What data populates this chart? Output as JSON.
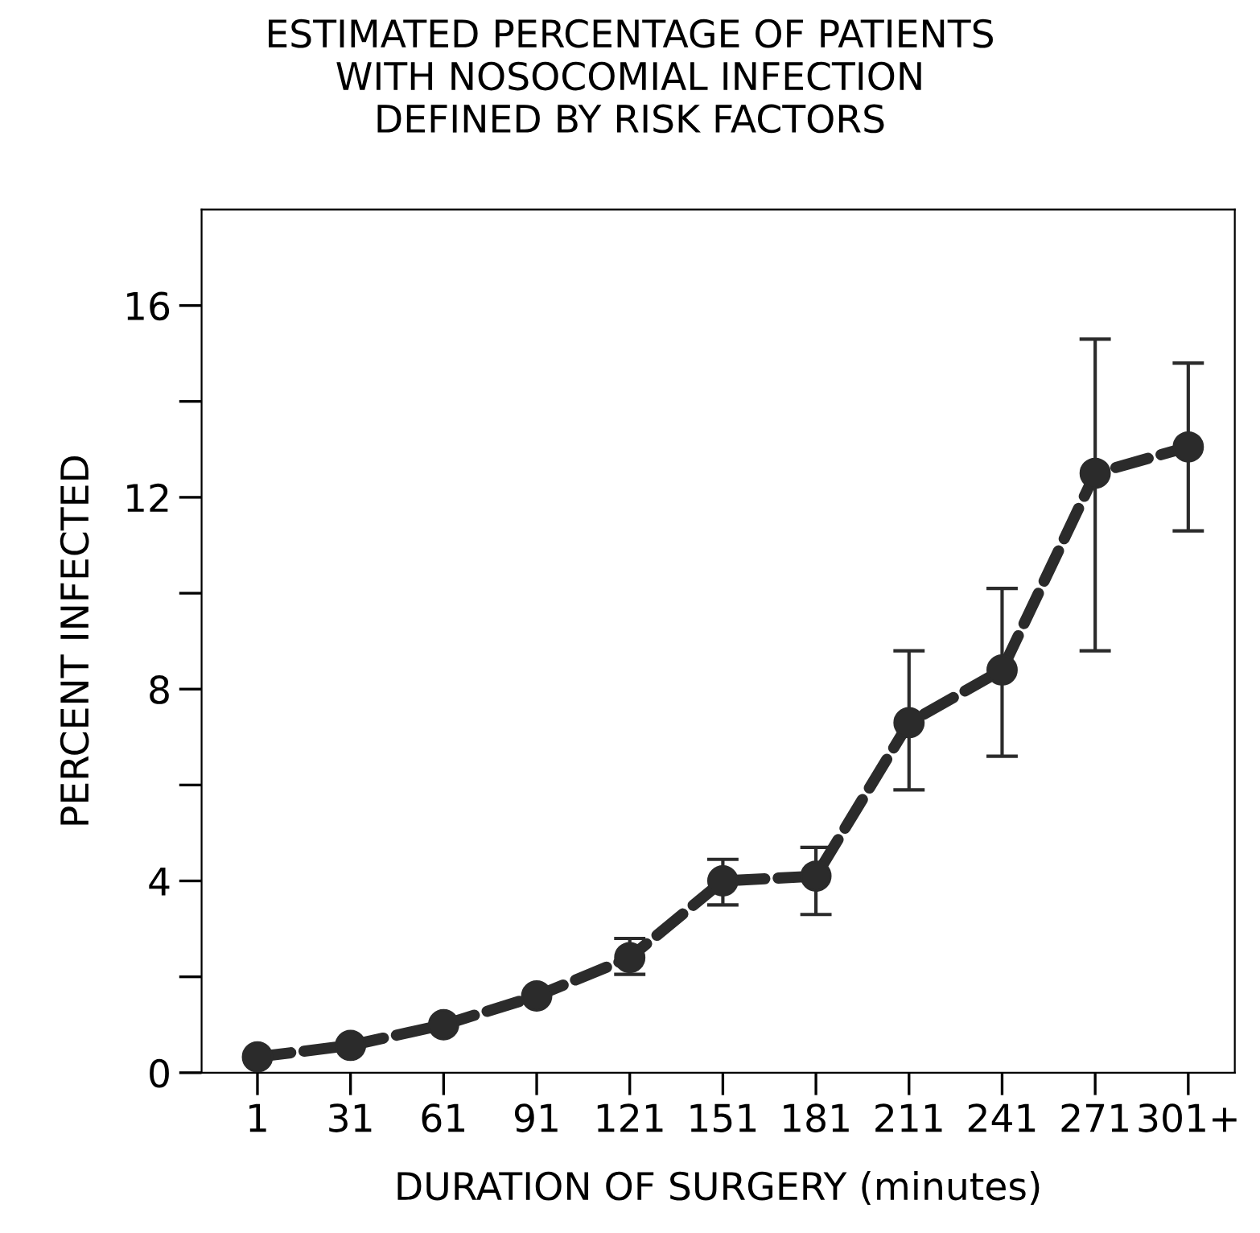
{
  "chart_data": {
    "type": "line",
    "title": "ESTIMATED PERCENTAGE OF PATIENTS\nWITH NOSOCOMIAL INFECTION\nDEFINED BY RISK FACTORS",
    "xlabel": "DURATION OF SURGERY (minutes)",
    "ylabel": "PERCENT INFECTED",
    "categories": [
      "1",
      "31",
      "61",
      "91",
      "121",
      "151",
      "181",
      "211",
      "241",
      "271",
      "301+"
    ],
    "series": [
      {
        "color": "#2b2b2b",
        "values": [
          0.33,
          0.57,
          1.0,
          1.6,
          2.4,
          4.0,
          4.1,
          7.3,
          8.4,
          12.5,
          13.05
        ],
        "errors": [
          null,
          null,
          null,
          null,
          [
            2.05,
            2.8
          ],
          [
            3.5,
            4.45
          ],
          [
            3.3,
            4.7
          ],
          [
            5.9,
            8.8
          ],
          [
            6.6,
            10.1
          ],
          [
            8.8,
            15.3
          ],
          [
            11.3,
            14.8
          ]
        ]
      }
    ],
    "ylim": [
      0,
      18
    ],
    "yticks": [
      0,
      {
        "value": 2,
        "label": null
      },
      4,
      {
        "value": 6,
        "label": null
      },
      8,
      {
        "value": 10,
        "label": null
      },
      12,
      {
        "value": 14,
        "label": null
      },
      16
    ],
    "marker": "circle",
    "line_style": "dashed",
    "grid": false
  }
}
